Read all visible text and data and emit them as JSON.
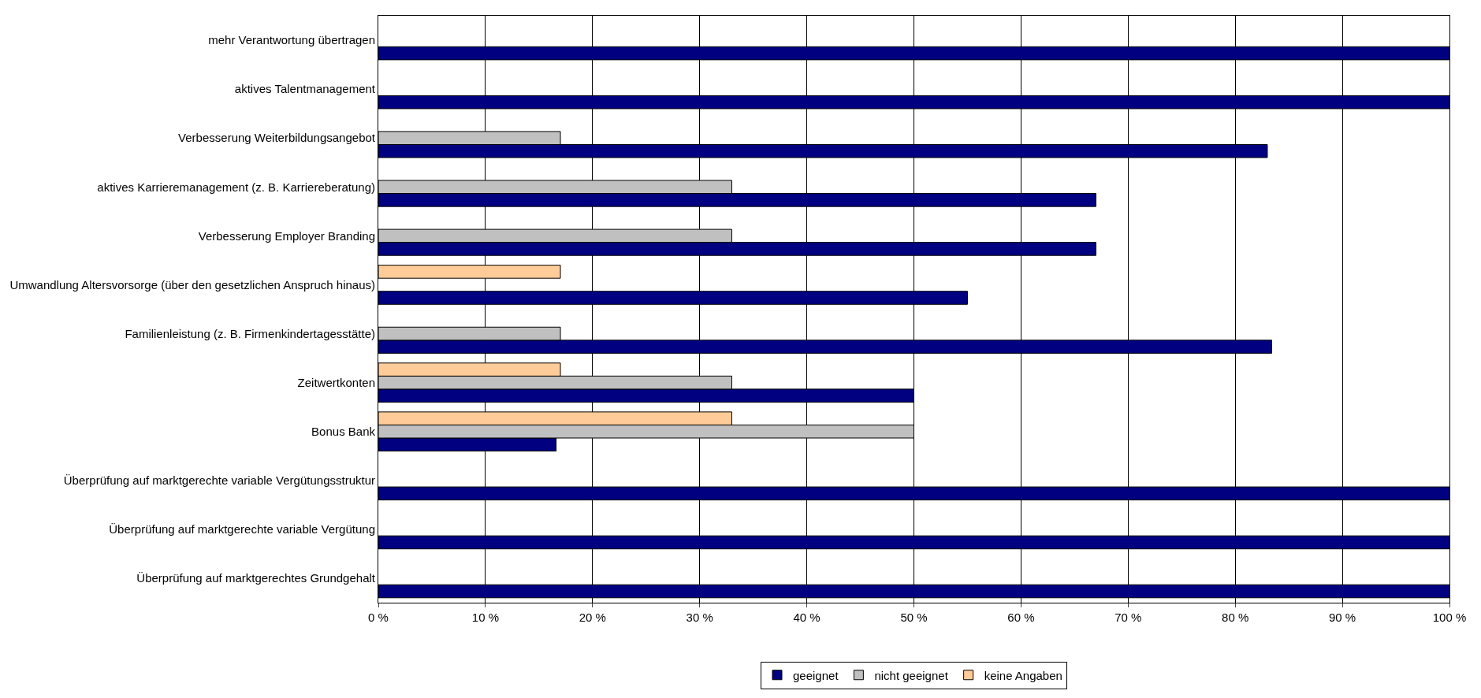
{
  "chart_data": {
    "type": "bar",
    "orientation": "horizontal",
    "categories": [
      "mehr Verantwortung übertragen",
      "aktives Talentmanagement",
      "Verbesserung Weiterbildungsangebot",
      "aktives Karrieremanagement (z. B. Karriereberatung)",
      "Verbesserung Employer Branding",
      "Umwandlung Altersvorsorge (über den gesetzlichen Anspruch hinaus)",
      "Familienleistung (z. B. Firmenkindertagesstätte)",
      "Zeitwertkonten",
      "Bonus Bank",
      "Überprüfung auf marktgerechte variable Vergütungsstruktur",
      "Überprüfung auf marktgerechte variable Vergütung",
      "Überprüfung auf marktgerechtes Grundgehalt"
    ],
    "series": [
      {
        "name": "geeignet",
        "color": "#000080",
        "values": [
          100,
          100,
          83,
          67,
          67,
          55,
          83.4,
          50,
          16.6,
          100,
          100,
          100
        ]
      },
      {
        "name": "nicht geeignet",
        "color": "#c0c0c0",
        "values": [
          null,
          null,
          17,
          33,
          33,
          null,
          17,
          33,
          50,
          null,
          null,
          null
        ]
      },
      {
        "name": "keine Angaben",
        "color": "#ffcc99",
        "values": [
          null,
          null,
          null,
          null,
          null,
          17,
          null,
          17,
          33,
          null,
          null,
          null
        ]
      }
    ],
    "xlim": [
      0,
      100
    ],
    "xticks": [
      {
        "value": 0,
        "label": "0 %"
      },
      {
        "value": 10,
        "label": "10 %"
      },
      {
        "value": 20,
        "label": "20 %"
      },
      {
        "value": 30,
        "label": "30 %"
      },
      {
        "value": 40,
        "label": "40 %"
      },
      {
        "value": 50,
        "label": "50 %"
      },
      {
        "value": 60,
        "label": "60 %"
      },
      {
        "value": 70,
        "label": "70 %"
      },
      {
        "value": 80,
        "label": "80 %"
      },
      {
        "value": 90,
        "label": "90 %"
      },
      {
        "value": 100,
        "label": "100 %"
      }
    ],
    "grid": "x",
    "legend": "bottom"
  }
}
